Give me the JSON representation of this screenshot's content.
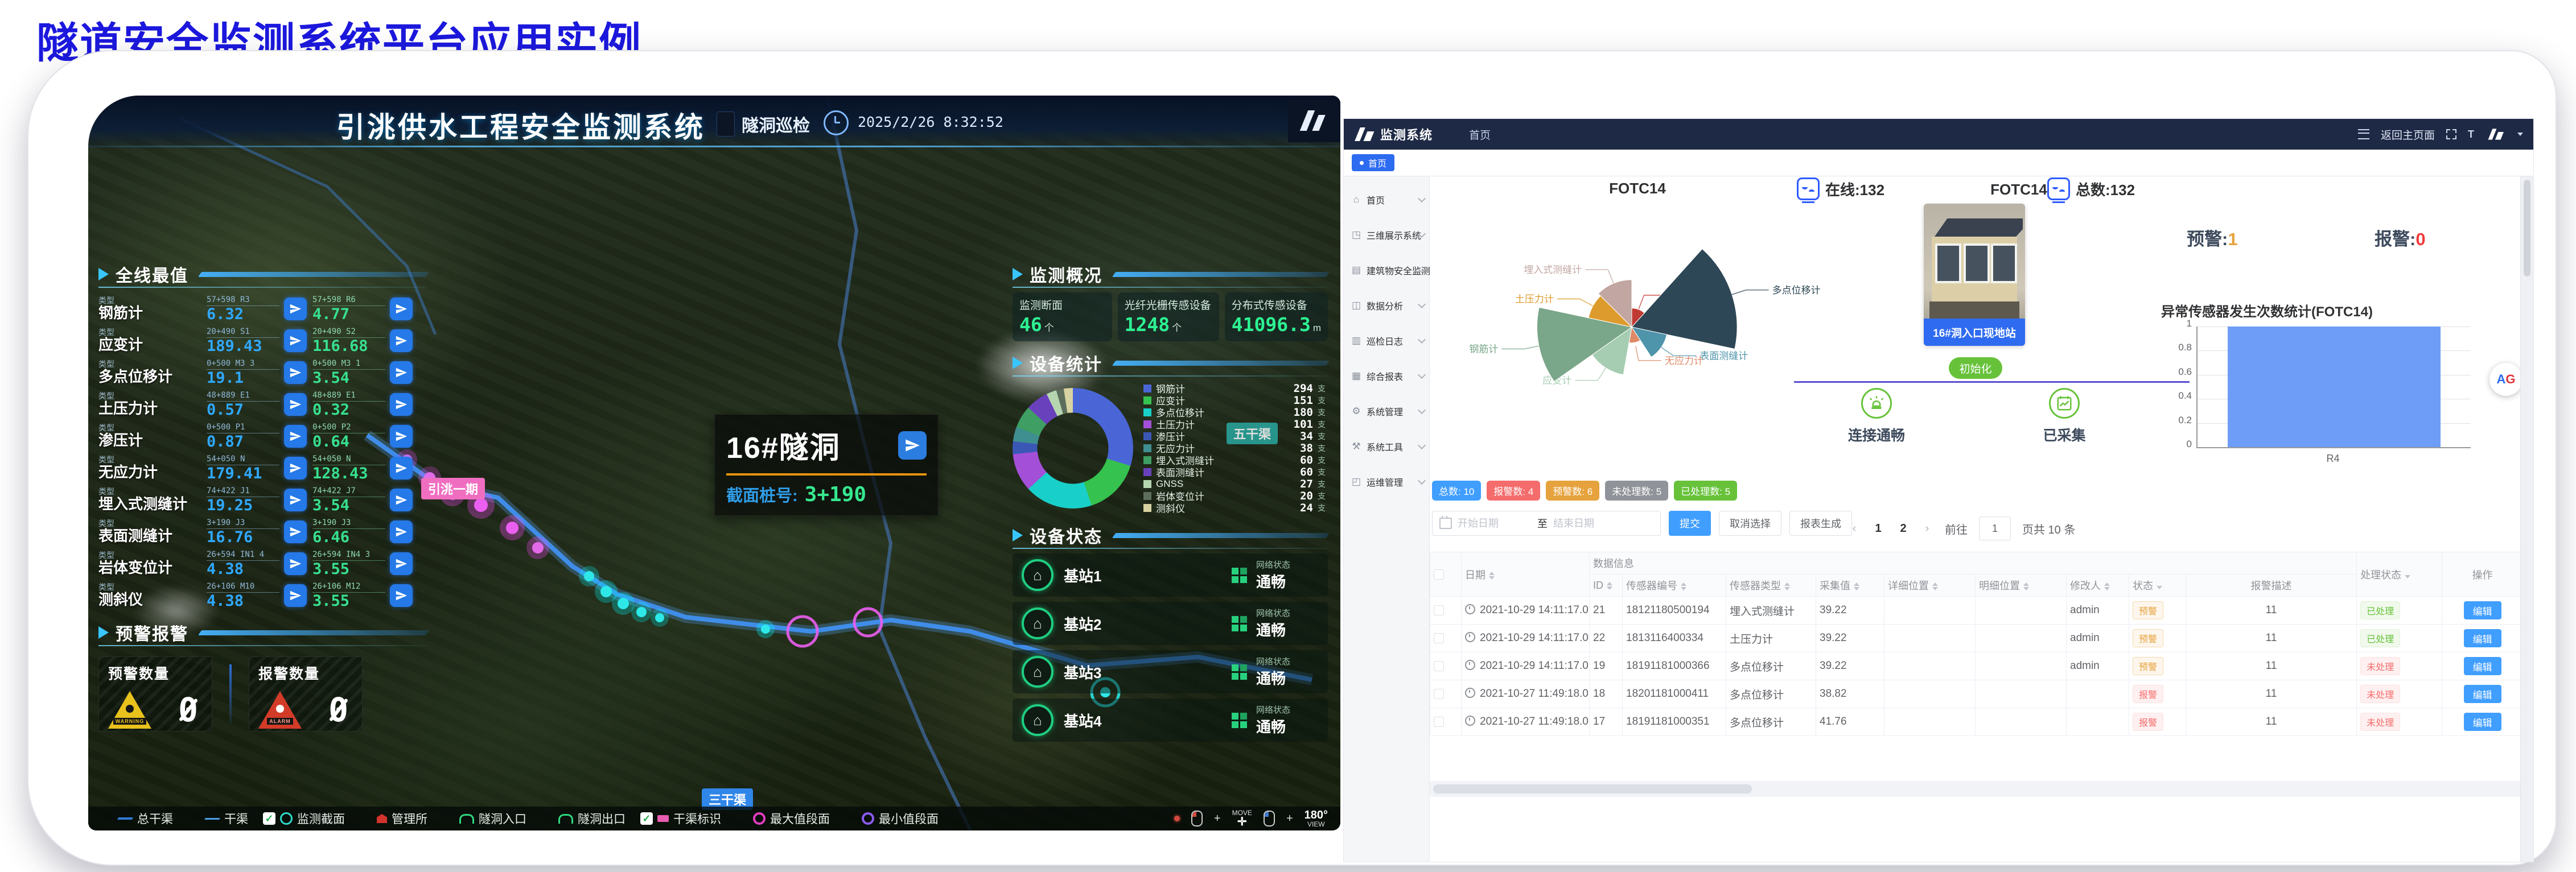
{
  "slide": {
    "title": "隧道安全监测系统平台应用实例"
  },
  "dash": {
    "header": {
      "title": "引洮供水工程安全监测系统",
      "patrol_label": "隧洞巡检",
      "datetime": "2025/2/26 8:32:52"
    },
    "max_panel": {
      "title": "全线最值",
      "type_label": "类型",
      "rows": [
        {
          "type": "钢筋计",
          "id1": "57+598 R3",
          "v1": "6.32",
          "id2": "57+598 R6",
          "v2": "4.77"
        },
        {
          "type": "应变计",
          "id1": "20+490 S1",
          "v1": "189.43",
          "id2": "20+490 S2",
          "v2": "116.68"
        },
        {
          "type": "多点位移计",
          "id1": "0+500 M3 3",
          "v1": "19.1",
          "id2": "0+500 M3 1",
          "v2": "3.54"
        },
        {
          "type": "土压力计",
          "id1": "48+889 E1",
          "v1": "0.57",
          "id2": "48+889 E1",
          "v2": "0.32"
        },
        {
          "type": "渗压计",
          "id1": "0+500 P1",
          "v1": "0.87",
          "id2": "0+500 P2",
          "v2": "0.64"
        },
        {
          "type": "无应力计",
          "id1": "54+050 N",
          "v1": "179.41",
          "id2": "54+050 N",
          "v2": "128.43"
        },
        {
          "type": "埋入式测缝计",
          "id1": "74+422 J1",
          "v1": "19.25",
          "id2": "74+422 J7",
          "v2": "3.54"
        },
        {
          "type": "表面测缝计",
          "id1": "3+190 J3",
          "v1": "16.76",
          "id2": "3+190 J3",
          "v2": "6.46"
        },
        {
          "type": "岩体变位计",
          "id1": "26+594 IN1 4",
          "v1": "4.38",
          "id2": "26+594 IN4 3",
          "v2": "3.55"
        },
        {
          "type": "测斜仪",
          "id1": "26+106 M10",
          "v1": "4.38",
          "id2": "26+106 M12",
          "v2": "3.55"
        }
      ]
    },
    "alert_panel": {
      "title": "预警报警",
      "warning_label": "预警数量",
      "warning_value": "0",
      "warning_badge": "WARNING",
      "alarm_label": "报警数量",
      "alarm_value": "0",
      "alarm_badge": "ALARM"
    },
    "overview_panel": {
      "title": "监测概况",
      "cards": [
        {
          "label": "监测断面",
          "value": "46",
          "unit": "个"
        },
        {
          "label": "光纤光栅传感设备",
          "value": "1248",
          "unit": "个"
        },
        {
          "label": "分布式传感设备",
          "value": "41096.3",
          "unit": "m"
        }
      ]
    },
    "device_panel": {
      "title": "设备统计"
    },
    "status_panel": {
      "title": "设备状态",
      "net_label": "网络状态",
      "stations": [
        {
          "name": "基站1",
          "status": "通畅"
        },
        {
          "name": "基站2",
          "status": "通畅"
        },
        {
          "name": "基站3",
          "status": "通畅"
        },
        {
          "name": "基站4",
          "status": "通畅"
        }
      ]
    },
    "map": {
      "popup": {
        "title": "16#隧洞",
        "label": "截面桩号:",
        "value": "3+190"
      },
      "labels": {
        "phase": "引洮一期",
        "canal3": "三干渠",
        "canal5": "五干渠"
      }
    },
    "legend": {
      "items": [
        {
          "check": false,
          "icon": "i-canal-main",
          "label": "总干渠"
        },
        {
          "check": false,
          "icon": "i-canal",
          "label": "干渠"
        },
        {
          "check": true,
          "icon": "i-section",
          "label": "监测截面"
        },
        {
          "check": false,
          "icon": "i-office",
          "label": "管理所"
        },
        {
          "check": false,
          "icon": "i-tunnel-in",
          "label": "隧洞入口"
        },
        {
          "check": false,
          "icon": "i-tunnel-out",
          "label": "隧洞出口"
        },
        {
          "check": true,
          "icon": "i-tag",
          "label": "干渠标识"
        },
        {
          "check": false,
          "icon": "i-max",
          "label": "最大值段面"
        },
        {
          "check": false,
          "icon": "i-min",
          "label": "最小值段面"
        }
      ],
      "move": "MOVE",
      "view_deg": "180°",
      "view": "VIEW"
    }
  },
  "admin": {
    "nav": {
      "brand": "监测系统",
      "menu": "首页",
      "back": "返回主页面",
      "t_icon": "T"
    },
    "tab": "首页",
    "sidebar": {
      "items": [
        {
          "icon": "home",
          "label": "首页"
        },
        {
          "icon": "cube",
          "label": "三维展示系统"
        },
        {
          "icon": "building",
          "label": "建筑物安全监测"
        },
        {
          "icon": "chart",
          "label": "数据分析"
        },
        {
          "icon": "log",
          "label": "巡检日志"
        },
        {
          "icon": "report",
          "label": "综合报表"
        },
        {
          "icon": "gear",
          "label": "系统管理"
        },
        {
          "icon": "tools",
          "label": "系统工具"
        },
        {
          "icon": "ops",
          "label": "运维管理"
        }
      ]
    },
    "stats": {
      "online": "在线:132",
      "total": "总数:132",
      "warn_label": "预警:",
      "warn_value": "1",
      "alarm_label": "报警:",
      "alarm_value": "0"
    },
    "station": {
      "title": "FOTC14",
      "caption": "16#洞入口现地站",
      "init": "初始化",
      "conn": "连接通畅",
      "collected": "已采集"
    },
    "ag": {
      "a": "A",
      "g": "G"
    },
    "badges": [
      {
        "label": "总数:",
        "value": "10",
        "color": "#409eff"
      },
      {
        "label": "报警数:",
        "value": "4",
        "color": "#f56c6c"
      },
      {
        "label": "预警数:",
        "value": "6",
        "color": "#e6a23c"
      },
      {
        "label": "未处理数:",
        "value": "5",
        "color": "#909399"
      },
      {
        "label": "已处理数:",
        "value": "5",
        "color": "#67c23a"
      }
    ],
    "filter": {
      "start_placeholder": "开始日期",
      "separator": "至",
      "end_placeholder": "结束日期",
      "submit": "提交",
      "cancel": "取消选择",
      "report": "报表生成"
    },
    "pagination": {
      "prev": "‹",
      "pages": [
        "1",
        "2"
      ],
      "next": "›",
      "goto_label": "前往",
      "goto_value": "1",
      "suffix": "页共 10 条"
    },
    "table": {
      "group": "数据信息",
      "columns": {
        "date": "日期",
        "id": "ID",
        "sensor_no": "传感器编号",
        "sensor_type": "传感器类型",
        "value": "采集值",
        "detail": "详细位置",
        "fine": "明细位置",
        "editor": "修改人",
        "status": "状态",
        "desc": "报警描述",
        "process": "处理状态",
        "action": "操作"
      },
      "edit_label": "编辑",
      "rows": [
        {
          "date": "2021-10-29 14:11:17.0",
          "id": "21",
          "sensor_no": "18121180500194",
          "sensor_type": "埋入式测缝计",
          "value": "39.22",
          "detail": "",
          "fine": "",
          "editor": "admin",
          "status": "预警",
          "desc": "11",
          "process": "已处理"
        },
        {
          "date": "2021-10-29 14:11:17.0",
          "id": "22",
          "sensor_no": "1813116400334",
          "sensor_type": "土压力计",
          "value": "39.22",
          "detail": "",
          "fine": "",
          "editor": "admin",
          "status": "预警",
          "desc": "11",
          "process": "已处理"
        },
        {
          "date": "2021-10-29 14:11:17.0",
          "id": "19",
          "sensor_no": "18191181000366",
          "sensor_type": "多点位移计",
          "value": "39.22",
          "detail": "",
          "fine": "",
          "editor": "admin",
          "status": "预警",
          "desc": "11",
          "process": "未处理"
        },
        {
          "date": "2021-10-27 11:49:18.0",
          "id": "18",
          "sensor_no": "18201181000411",
          "sensor_type": "多点位移计",
          "value": "38.82",
          "detail": "",
          "fine": "",
          "editor": "",
          "status": "报警",
          "desc": "11",
          "process": "未处理"
        },
        {
          "date": "2021-10-27 11:49:18.0",
          "id": "17",
          "sensor_no": "18191181000351",
          "sensor_type": "多点位移计",
          "value": "41.76",
          "detail": "",
          "fine": "",
          "editor": "",
          "status": "报警",
          "desc": "11",
          "process": "未处理"
        }
      ]
    }
  },
  "chart_data": [
    {
      "id": "rose",
      "type": "pie",
      "title": "FOTC14",
      "note_type": "nightingale-rose, radii are relative estimates (no numeric labels shown in source)",
      "series": [
        {
          "name": "埋入式测缝计",
          "value": 0.45,
          "color": "#c2a6a1",
          "start": -135,
          "end": -90
        },
        {
          "name": "渗压计",
          "value": 0.18,
          "color": "#bf3a32",
          "start": -90,
          "end": -48
        },
        {
          "name": "多点位移计",
          "value": 1.0,
          "color": "#2e4756",
          "start": -48,
          "end": 12
        },
        {
          "name": "表面测缝计",
          "value": 0.34,
          "color": "#4e94aa",
          "start": 12,
          "end": 57
        },
        {
          "name": "无应力计",
          "value": 0.15,
          "color": "#de8a67",
          "start": 57,
          "end": 100
        },
        {
          "name": "应变计",
          "value": 0.46,
          "color": "#a6cdb2",
          "start": 100,
          "end": 145
        },
        {
          "name": "钢筋计",
          "value": 0.9,
          "color": "#7aa689",
          "start": 145,
          "end": 192
        },
        {
          "name": "土压力计",
          "value": 0.42,
          "color": "#dd9b2d",
          "start": 192,
          "end": 225
        }
      ]
    },
    {
      "id": "donut",
      "type": "pie",
      "title": "设备统计",
      "unit": "支",
      "items": [
        {
          "name": "钢筋计",
          "value": 294,
          "color": "#4a66d6"
        },
        {
          "name": "应变计",
          "value": 151,
          "color": "#35c24e"
        },
        {
          "name": "多点位移计",
          "value": 180,
          "color": "#19cfc9"
        },
        {
          "name": "土压力计",
          "value": 101,
          "color": "#a44fd8"
        },
        {
          "name": "渗压计",
          "value": 34,
          "color": "#3b57b5"
        },
        {
          "name": "无应力计",
          "value": 38,
          "color": "#3f8e90"
        },
        {
          "name": "埋入式测缝计",
          "value": 60,
          "color": "#3e9e63"
        },
        {
          "name": "表面测缝计",
          "value": 60,
          "color": "#6a41bd"
        },
        {
          "name": "GNSS",
          "value": 27,
          "color": "#b5d6af"
        },
        {
          "name": "岩体变位计",
          "value": 20,
          "color": "#5d6f5c"
        },
        {
          "name": "测斜仪",
          "value": 24,
          "color": "#d8d3a2"
        }
      ]
    },
    {
      "id": "abnormal",
      "type": "bar",
      "title": "异常传感器发生次数统计(FOTC14)",
      "categories": [
        "R4"
      ],
      "values": [
        1
      ],
      "ylim": [
        0,
        1
      ],
      "yticks": [
        1,
        0.8,
        0.6,
        0.4,
        0.2,
        0
      ],
      "bar_color": "#6d9df6",
      "grid": true,
      "legend_position": "none"
    }
  ]
}
